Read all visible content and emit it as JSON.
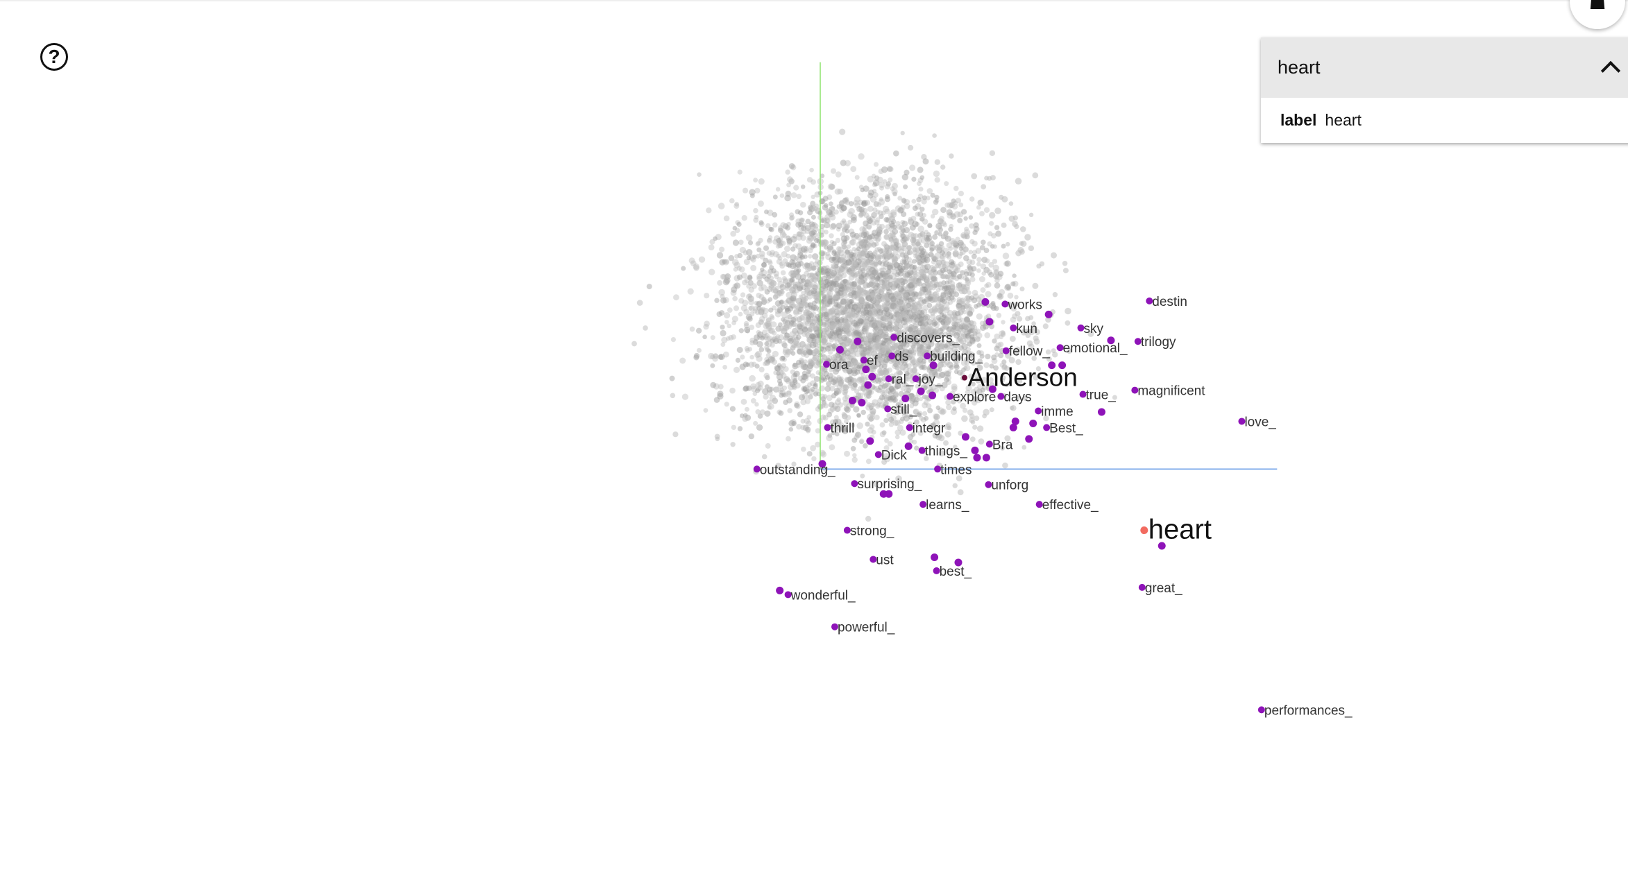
{
  "app": {
    "help_icon": "question-circle-icon",
    "home_icon": "home-icon"
  },
  "inspector": {
    "title": "heart",
    "collapse_icon": "chevron-up-icon",
    "field_name": "label",
    "field_value": "heart"
  },
  "projection": {
    "point_color": "#bdbdbd",
    "neighbor_color": "#8e13b8",
    "selected_color": "#f26b60",
    "x_axis_color": "#6c9fe8",
    "y_axis_color": "#8de26c",
    "selected_label": "heart",
    "hover_label": "Anderson",
    "neighbor_labels": [
      "works",
      "destin",
      "kun",
      "sky",
      "trilogy",
      "discovers_",
      "emotional_",
      "fellow_",
      "ora",
      "ef",
      "ds",
      "building_",
      "ral_",
      "joy_",
      "explore",
      "days",
      "true_",
      "magnificent",
      "love_",
      "still_",
      "imme",
      "thrill",
      "integr",
      "Best_",
      "Bra",
      "Dick",
      "things_",
      "outstanding_",
      "times",
      "surprising_",
      "unforg",
      "learns_",
      "effective_",
      "strong_",
      "ust",
      "best_",
      "great_",
      "wonderful_",
      "powerful_",
      "performances_"
    ]
  }
}
